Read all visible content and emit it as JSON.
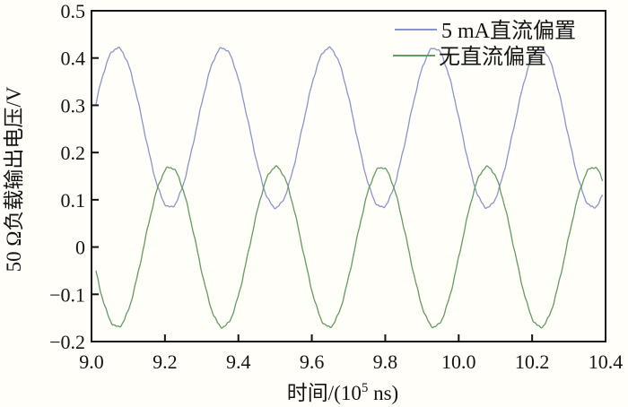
{
  "figure": {
    "background": "#fffef8",
    "axis_color": "#141414"
  },
  "chart_data": {
    "type": "line",
    "title": "",
    "xlabel": {
      "full": "时间/(10⁵ ns)",
      "prefix": "时间/(10",
      "sup": "5",
      "suffix": " ns)"
    },
    "ylabel": "50 Ω负载输出电压/V",
    "xlim": [
      9.0,
      10.4
    ],
    "ylim": [
      -0.2,
      0.5
    ],
    "grid": false,
    "xticks": {
      "values": [
        9.0,
        9.2,
        9.4,
        9.6,
        9.8,
        10.0,
        10.2,
        10.4
      ],
      "labels": [
        "9.0",
        "9.2",
        "9.4",
        "9.6",
        "9.8",
        "10.0",
        "10.2",
        "10.4"
      ]
    },
    "yticks": {
      "values": [
        0.5,
        0.4,
        0.3,
        0.2,
        0.1,
        0,
        -0.1,
        -0.2
      ],
      "labels": [
        "0.5",
        "0.4",
        "0.3",
        "0.2",
        "0.1",
        "0",
        "−0.1",
        "−0.2"
      ]
    },
    "legend": {
      "position": "top-right-inside",
      "entries": [
        {
          "label": "5 mA直流偏置",
          "color": "#8b94ca"
        },
        {
          "label": "无直流偏置",
          "color": "#649a64"
        }
      ]
    },
    "series": [
      {
        "name": "5 mA直流偏置",
        "color": "#8b94ca",
        "waveform": {
          "shape": "sine",
          "mean": 0.2525,
          "amplitude": 0.1685,
          "period": 0.288,
          "x_first_max": 9.07,
          "x_start": 9.012,
          "x_end": 10.392,
          "y_max": 0.42,
          "y_min": 0.084
        }
      },
      {
        "name": "无直流偏置",
        "color": "#649a64",
        "waveform": {
          "shape": "sine",
          "mean": 0.0,
          "amplitude": 0.169,
          "period": 0.288,
          "x_first_max": 9.214,
          "x_start": 9.012,
          "x_end": 10.392,
          "y_max": 0.169,
          "y_min": -0.169,
          "phase_relative_to_series_1": "antiphase"
        }
      }
    ]
  }
}
